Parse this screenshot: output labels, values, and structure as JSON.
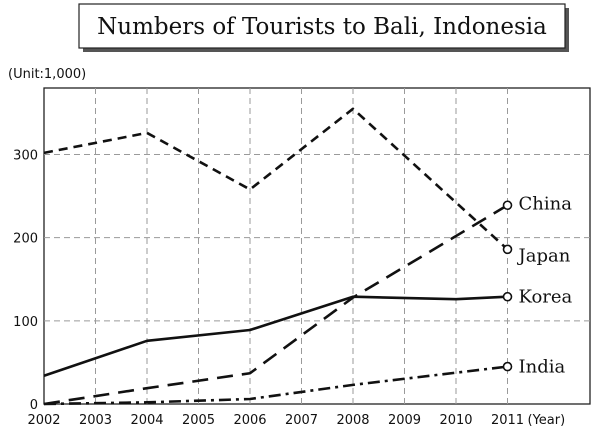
{
  "chart_data": {
    "type": "line",
    "title": "Numbers of Tourists to Bali, Indonesia",
    "unit_label": "(Unit:1,000)",
    "x_unit_label": "(Year)",
    "x": [
      2002,
      2003,
      2004,
      2005,
      2006,
      2007,
      2008,
      2009,
      2010,
      2011
    ],
    "x_tick_labels": [
      "2002",
      "2003",
      "2004",
      "2005",
      "2006",
      "2007",
      "2008",
      "2009",
      "2010",
      "2011"
    ],
    "y_ticks": [
      0,
      100,
      200,
      300
    ],
    "y_tick_labels": [
      "0",
      "100",
      "200",
      "300"
    ],
    "xlim": [
      2002,
      2011.8
    ],
    "ylim": [
      0,
      380
    ],
    "grid": true,
    "series": [
      {
        "name": "Japan",
        "style": "dashed",
        "x": [
          2002,
          2004,
          2006,
          2008,
          2011
        ],
        "values": [
          302,
          326,
          258,
          355,
          186
        ],
        "end_marker": true
      },
      {
        "name": "China",
        "style": "long-dashed",
        "x": [
          2002,
          2004,
          2006,
          2008,
          2011
        ],
        "values": [
          0,
          19,
          37,
          128,
          239
        ],
        "end_marker": true
      },
      {
        "name": "Korea",
        "style": "solid",
        "x": [
          2002,
          2004,
          2006,
          2008,
          2010,
          2011
        ],
        "values": [
          34,
          76,
          89,
          129,
          126,
          129
        ],
        "end_marker": true
      },
      {
        "name": "India",
        "style": "dash-dot",
        "x": [
          2002,
          2004,
          2006,
          2008,
          2011
        ],
        "values": [
          0,
          2,
          6,
          23,
          45
        ],
        "end_marker": true
      }
    ]
  }
}
